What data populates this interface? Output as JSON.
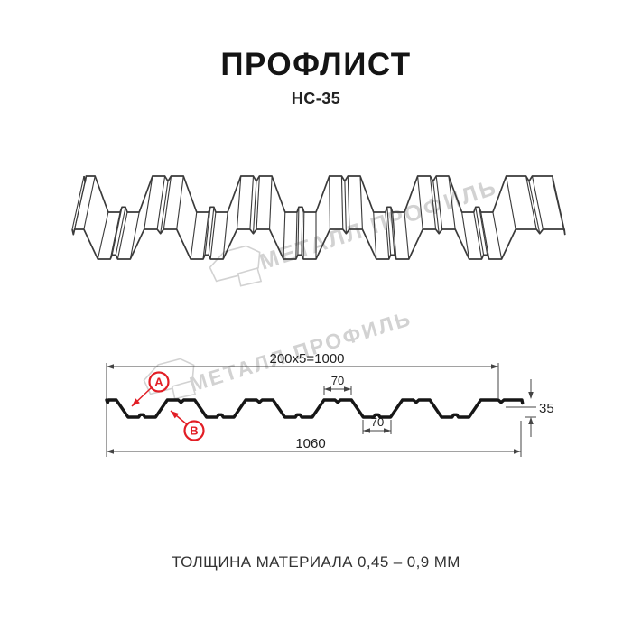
{
  "header": {
    "title": "ПРОФЛИСТ",
    "subtitle": "НС-35"
  },
  "watermark": {
    "brand": "МЕТАЛЛ ПРОФИЛЬ"
  },
  "drawing": {
    "dim_working_width": "200x5=1000",
    "dim_flange_top": "70",
    "dim_valley_bottom": "70",
    "dim_overall_width": "1060",
    "dim_height": "35",
    "marker_a": "A",
    "marker_b": "B"
  },
  "geometry": {
    "overall_width_mm": 1060,
    "module_mm": 200,
    "module_count": 5,
    "flange_width_mm": 70,
    "valley_width_mm": 70,
    "height_mm": 35
  },
  "footer": {
    "thickness_note": "ТОЛЩИНА МАТЕРИАЛА 0,45 – 0,9 ММ"
  },
  "colors": {
    "accent_red": "#e21e25",
    "line_dark": "#161616",
    "line_3d": "#3a3a3a",
    "dim_line": "#444444",
    "watermark_gray": "#d2d2d2"
  }
}
